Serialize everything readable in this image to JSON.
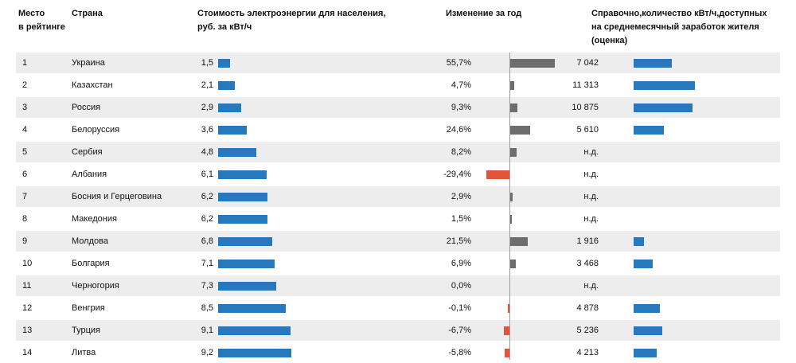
{
  "headers": {
    "rank": [
      "Место",
      "в рейтинге"
    ],
    "country": "Страна",
    "price": [
      "Стоимость электроэнергии для населения,",
      "руб. за кВт/ч"
    ],
    "change": "Изменение за год",
    "kwh": [
      "Справочно,количество кВт/ч,доступных",
      "на среднемесячный заработок жителя",
      "(оценка)"
    ]
  },
  "colors": {
    "price_bar": "#2779bd",
    "kwh_bar": "#2779bd",
    "change_positive": "#6d6d6d",
    "change_negative": "#e1553a",
    "row_shade": "#ededed"
  },
  "chart_data": {
    "type": "table",
    "columns": [
      "Место в рейтинге",
      "Страна",
      "Стоимость электроэнергии для населения, руб. за кВт/ч",
      "Изменение за год",
      "Справочно,количество кВт/ч,доступных на среднемесячный заработок жителя (оценка)"
    ],
    "rows": [
      {
        "rank": "1",
        "country": "Украина",
        "price": 1.5,
        "price_label": "1,5",
        "change": 55.7,
        "change_label": "55,7%",
        "kwh": 7042,
        "kwh_label": "7 042"
      },
      {
        "rank": "2",
        "country": "Казахстан",
        "price": 2.1,
        "price_label": "2,1",
        "change": 4.7,
        "change_label": "4,7%",
        "kwh": 11313,
        "kwh_label": "11 313"
      },
      {
        "rank": "3",
        "country": "Россия",
        "price": 2.9,
        "price_label": "2,9",
        "change": 9.3,
        "change_label": "9,3%",
        "kwh": 10875,
        "kwh_label": "10 875"
      },
      {
        "rank": "4",
        "country": "Белоруссия",
        "price": 3.6,
        "price_label": "3,6",
        "change": 24.6,
        "change_label": "24,6%",
        "kwh": 5610,
        "kwh_label": "5 610"
      },
      {
        "rank": "5",
        "country": "Сербия",
        "price": 4.8,
        "price_label": "4,8",
        "change": 8.2,
        "change_label": "8,2%",
        "kwh": null,
        "kwh_label": "н.д."
      },
      {
        "rank": "6",
        "country": "Албания",
        "price": 6.1,
        "price_label": "6,1",
        "change": -29.4,
        "change_label": "-29,4%",
        "kwh": null,
        "kwh_label": "н.д."
      },
      {
        "rank": "7",
        "country": "Босния и Герцеговина",
        "price": 6.2,
        "price_label": "6,2",
        "change": 2.9,
        "change_label": "2,9%",
        "kwh": null,
        "kwh_label": "н.д."
      },
      {
        "rank": "8",
        "country": "Македония",
        "price": 6.2,
        "price_label": "6,2",
        "change": 1.5,
        "change_label": "1,5%",
        "kwh": null,
        "kwh_label": "н.д."
      },
      {
        "rank": "9",
        "country": "Молдова",
        "price": 6.8,
        "price_label": "6,8",
        "change": 21.5,
        "change_label": "21,5%",
        "kwh": 1916,
        "kwh_label": "1 916"
      },
      {
        "rank": "10",
        "country": "Болгария",
        "price": 7.1,
        "price_label": "7,1",
        "change": 6.9,
        "change_label": "6,9%",
        "kwh": 3468,
        "kwh_label": "3 468"
      },
      {
        "rank": "11",
        "country": "Черногория",
        "price": 7.3,
        "price_label": "7,3",
        "change": 0.0,
        "change_label": "0,0%",
        "kwh": null,
        "kwh_label": "н.д."
      },
      {
        "rank": "12",
        "country": "Венгрия",
        "price": 8.5,
        "price_label": "8,5",
        "change": -0.1,
        "change_label": "-0,1%",
        "kwh": 4878,
        "kwh_label": "4 878"
      },
      {
        "rank": "13",
        "country": "Турция",
        "price": 9.1,
        "price_label": "9,1",
        "change": -6.7,
        "change_label": "-6,7%",
        "kwh": 5236,
        "kwh_label": "5 236"
      },
      {
        "rank": "14",
        "country": "Литва",
        "price": 9.2,
        "price_label": "9,2",
        "change": -5.8,
        "change_label": "-5,8%",
        "kwh": 4213,
        "kwh_label": "4 213"
      }
    ]
  }
}
